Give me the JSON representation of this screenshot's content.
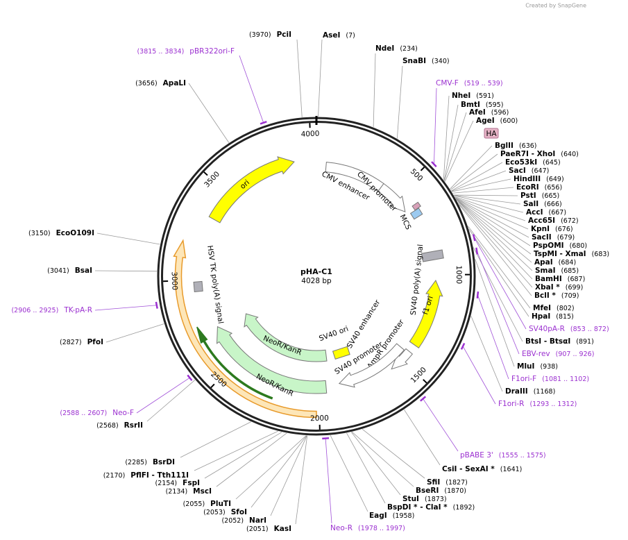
{
  "watermark": "Created by SnapGene",
  "plasmid": {
    "name": "pHA-C1",
    "length": "4028 bp"
  },
  "ticks": [
    500,
    1000,
    1500,
    2000,
    2500,
    3000,
    3500,
    4000
  ],
  "enzymes": [
    {
      "name": "PciI",
      "site": "(3970)"
    },
    {
      "name": "AseI",
      "site": "(7)"
    },
    {
      "name": "NdeI",
      "site": "(234)"
    },
    {
      "name": "SnaBI",
      "site": "(340)"
    },
    {
      "name": "ApaLI",
      "site": "(3656)"
    },
    {
      "name": "NheI",
      "site": "(591)"
    },
    {
      "name": "BmtI",
      "site": "(595)"
    },
    {
      "name": "AfeI",
      "site": "(596)"
    },
    {
      "name": "AgeI",
      "site": "(600)"
    },
    {
      "name": "BglII",
      "site": "(636)"
    },
    {
      "name": "PaeR7I - XhoI",
      "site": "(640)"
    },
    {
      "name": "Eco53kI",
      "site": "(645)"
    },
    {
      "name": "SacI",
      "site": "(647)"
    },
    {
      "name": "HindIII",
      "site": "(649)"
    },
    {
      "name": "EcoRI",
      "site": "(656)"
    },
    {
      "name": "PstI",
      "site": "(665)"
    },
    {
      "name": "SalI",
      "site": "(666)"
    },
    {
      "name": "AccI",
      "site": "(667)"
    },
    {
      "name": "Acc65I",
      "site": "(672)"
    },
    {
      "name": "KpnI",
      "site": "(676)"
    },
    {
      "name": "SacII",
      "site": "(679)"
    },
    {
      "name": "PspOMI",
      "site": "(680)"
    },
    {
      "name": "TspMI - XmaI",
      "site": "(683)"
    },
    {
      "name": "ApaI",
      "site": "(684)"
    },
    {
      "name": "SmaI",
      "site": "(685)"
    },
    {
      "name": "BamHI",
      "site": "(687)"
    },
    {
      "name": "XbaI *",
      "site": "(699)"
    },
    {
      "name": "BclI *",
      "site": "(709)"
    },
    {
      "name": "MfeI",
      "site": "(802)"
    },
    {
      "name": "HpaI",
      "site": "(815)"
    },
    {
      "name": "BtsI - BtsαI",
      "site": "(891)"
    },
    {
      "name": "MluI",
      "site": "(938)"
    },
    {
      "name": "DraIII",
      "site": "(1168)"
    },
    {
      "name": "CsiI - SexAI *",
      "site": "(1641)"
    },
    {
      "name": "SfiI",
      "site": "(1827)"
    },
    {
      "name": "BseRI",
      "site": "(1870)"
    },
    {
      "name": "StuI",
      "site": "(1873)"
    },
    {
      "name": "BspDI * - ClaI *",
      "site": "(1892)"
    },
    {
      "name": "EagI",
      "site": "(1958)"
    },
    {
      "name": "KasI",
      "site": "(2051)"
    },
    {
      "name": "NarI",
      "site": "(2052)"
    },
    {
      "name": "SfoI",
      "site": "(2053)"
    },
    {
      "name": "PluTI",
      "site": "(2055)"
    },
    {
      "name": "MscI",
      "site": "(2134)"
    },
    {
      "name": "FspI",
      "site": "(2154)"
    },
    {
      "name": "PflFI - Tth111I",
      "site": "(2170)"
    },
    {
      "name": "BsrDI",
      "site": "(2285)"
    },
    {
      "name": "RsrII",
      "site": "(2568)"
    },
    {
      "name": "PfoI",
      "site": "(2827)"
    },
    {
      "name": "BsaI",
      "site": "(3041)"
    },
    {
      "name": "EcoO109I",
      "site": "(3150)"
    }
  ],
  "primers": [
    {
      "name": "pBR322ori-F",
      "site": "(3815 .. 3834)"
    },
    {
      "name": "CMV-F",
      "site": "(519 .. 539)"
    },
    {
      "name": "SV40pA-R",
      "site": "(853 .. 872)"
    },
    {
      "name": "EBV-rev",
      "site": "(907 .. 926)"
    },
    {
      "name": "F1ori-F",
      "site": "(1081 .. 1102)"
    },
    {
      "name": "F1ori-R",
      "site": "(1293 .. 1312)"
    },
    {
      "name": "pBABE 3'",
      "site": "(1555 .. 1575)"
    },
    {
      "name": "Neo-R",
      "site": "(1978 .. 1997)"
    },
    {
      "name": "Neo-F",
      "site": "(2588 .. 2607)"
    },
    {
      "name": "TK-pA-R",
      "site": "(2906 .. 2925)"
    }
  ],
  "features": [
    {
      "name": "ori"
    },
    {
      "name": "CMV enhancer"
    },
    {
      "name": "CMV promoter"
    },
    {
      "name": "MCS"
    },
    {
      "name": "HA"
    },
    {
      "name": "SV40 poly(A) signal"
    },
    {
      "name": "f1 ori"
    },
    {
      "name": "AmpR promoter"
    },
    {
      "name": "SV40 promoter"
    },
    {
      "name": "SV40 enhancer"
    },
    {
      "name": "SV40 ori"
    },
    {
      "name": "NeoR/KanR"
    },
    {
      "name": "NeoR/KanR"
    },
    {
      "name": "HSV TK poly(A) signal"
    }
  ]
}
